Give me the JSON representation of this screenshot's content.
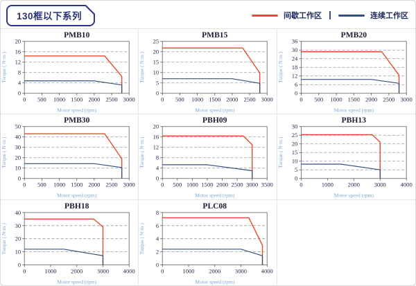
{
  "header": {
    "title": "130框以下系列",
    "legend": {
      "items": [
        {
          "label": "间歇工作区",
          "color": "#e64a2e"
        },
        {
          "label": "连续工作区",
          "color": "#2f4f87"
        }
      ],
      "separator": "|"
    }
  },
  "chart_data": [
    {
      "type": "line",
      "title": "PMB10",
      "xlabel": "Motor speed (rpm)",
      "ylabel": "Torque ( N·m )",
      "xlim": [
        0,
        3000
      ],
      "ylim": [
        0,
        20
      ],
      "xticks": [
        0,
        500,
        1000,
        1500,
        2000,
        2500,
        3000
      ],
      "yticks": [
        0,
        4,
        8,
        12,
        16,
        20
      ],
      "grid": "horizontal-dashed",
      "series": [
        {
          "name": "间歇工作区",
          "color": "#e64a2e",
          "points": [
            [
              0,
              14.4
            ],
            [
              2300,
              14.4
            ],
            [
              2790,
              6.5
            ],
            [
              2790,
              0
            ]
          ]
        },
        {
          "name": "连续工作区",
          "color": "#31517f",
          "points": [
            [
              0,
              4.8
            ],
            [
              2000,
              4.8
            ],
            [
              2790,
              3.2
            ],
            [
              2790,
              0
            ]
          ]
        }
      ]
    },
    {
      "type": "line",
      "title": "PMB15",
      "xlabel": "Motor speed (rpm)",
      "ylabel": "Torque ( N·m )",
      "xlim": [
        0,
        3000
      ],
      "ylim": [
        0,
        25
      ],
      "xticks": [
        0,
        500,
        1000,
        1500,
        2000,
        2500,
        3000
      ],
      "yticks": [
        0,
        5,
        10,
        15,
        20,
        25
      ],
      "grid": "horizontal-dashed",
      "series": [
        {
          "name": "间歇工作区",
          "color": "#e64a2e",
          "points": [
            [
              0,
              21.8
            ],
            [
              2300,
              21.8
            ],
            [
              2790,
              9.8
            ],
            [
              2790,
              0
            ]
          ]
        },
        {
          "name": "连续工作区",
          "color": "#31517f",
          "points": [
            [
              0,
              7
            ],
            [
              2000,
              7
            ],
            [
              2790,
              4.8
            ],
            [
              2790,
              0
            ]
          ]
        }
      ]
    },
    {
      "type": "line",
      "title": "PMB20",
      "xlabel": "Motor speed (rpm)",
      "ylabel": "Torque ( N·m )",
      "xlim": [
        0,
        3000
      ],
      "ylim": [
        0,
        36
      ],
      "xticks": [
        0,
        500,
        1000,
        1500,
        2000,
        2500,
        3000
      ],
      "yticks": [
        0,
        6,
        12,
        18,
        24,
        30,
        36
      ],
      "grid": "horizontal-dashed",
      "series": [
        {
          "name": "间歇工作区",
          "color": "#e64a2e",
          "points": [
            [
              0,
              28.8
            ],
            [
              2300,
              28.8
            ],
            [
              2790,
              12.5
            ],
            [
              2790,
              0
            ]
          ]
        },
        {
          "name": "连续工作区",
          "color": "#31517f",
          "points": [
            [
              0,
              9.6
            ],
            [
              2000,
              9.6
            ],
            [
              2790,
              6.9
            ],
            [
              2790,
              0
            ]
          ]
        }
      ]
    },
    {
      "type": "line",
      "title": "PMB30",
      "xlabel": "Motor speed (rpm)",
      "ylabel": "Torque ( N·m )",
      "xlim": [
        0,
        3000
      ],
      "ylim": [
        0,
        50
      ],
      "xticks": [
        0,
        500,
        1000,
        1500,
        2000,
        2500,
        3000
      ],
      "yticks": [
        0,
        10,
        20,
        30,
        40,
        50
      ],
      "grid": "horizontal-dashed",
      "series": [
        {
          "name": "间歇工作区",
          "color": "#e64a2e",
          "points": [
            [
              0,
              43
            ],
            [
              2300,
              43
            ],
            [
              2790,
              19
            ],
            [
              2790,
              0
            ]
          ]
        },
        {
          "name": "连续工作区",
          "color": "#31517f",
          "points": [
            [
              0,
              14.3
            ],
            [
              2000,
              14.3
            ],
            [
              2790,
              10.5
            ],
            [
              2790,
              0
            ]
          ]
        }
      ]
    },
    {
      "type": "line",
      "title": "PBH09",
      "xlabel": "Motor speed (rpm)",
      "ylabel": "Torque ( N·m )",
      "xlim": [
        0,
        3500
      ],
      "ylim": [
        0,
        20
      ],
      "xticks": [
        0,
        500,
        1000,
        1500,
        2000,
        2500,
        3000,
        3500
      ],
      "yticks": [
        0,
        4,
        8,
        12,
        16,
        20
      ],
      "grid": "horizontal-dashed",
      "series": [
        {
          "name": "间歇工作区",
          "color": "#e64a2e",
          "points": [
            [
              0,
              16.4
            ],
            [
              2700,
              16.4
            ],
            [
              3000,
              13
            ],
            [
              3000,
              0
            ]
          ]
        },
        {
          "name": "连续工作区",
          "color": "#31517f",
          "points": [
            [
              0,
              5.3
            ],
            [
              1500,
              5.3
            ],
            [
              3000,
              3
            ],
            [
              3000,
              0
            ]
          ]
        }
      ]
    },
    {
      "type": "line",
      "title": "PBH13",
      "xlabel": "Motor speed (rpm)",
      "ylabel": "Torque ( N·m )",
      "xlim": [
        0,
        4000
      ],
      "ylim": [
        0,
        30
      ],
      "xticks": [
        0,
        1000,
        2000,
        3000,
        4000
      ],
      "yticks": [
        0,
        5,
        10,
        15,
        20,
        25,
        30
      ],
      "grid": "horizontal-dashed",
      "series": [
        {
          "name": "间歇工作区",
          "color": "#e64a2e",
          "points": [
            [
              0,
              25.3
            ],
            [
              2700,
              25.3
            ],
            [
              3000,
              21
            ],
            [
              3000,
              0
            ]
          ]
        },
        {
          "name": "连续工作区",
          "color": "#31517f",
          "points": [
            [
              0,
              8.3
            ],
            [
              1500,
              8.3
            ],
            [
              3000,
              5
            ],
            [
              3000,
              0
            ]
          ]
        }
      ]
    },
    {
      "type": "line",
      "title": "PBH18",
      "xlabel": "Motor speed (rpm)",
      "ylabel": "Torque ( N·m )",
      "xlim": [
        0,
        4000
      ],
      "ylim": [
        0,
        40
      ],
      "xticks": [
        0,
        1000,
        2000,
        3000,
        4000
      ],
      "yticks": [
        0,
        10,
        20,
        30,
        40
      ],
      "grid": "horizontal-dashed",
      "series": [
        {
          "name": "间歇工作区",
          "color": "#e64a2e",
          "points": [
            [
              0,
              35
            ],
            [
              2650,
              35
            ],
            [
              3000,
              29
            ],
            [
              3000,
              0
            ]
          ]
        },
        {
          "name": "连续工作区",
          "color": "#31517f",
          "points": [
            [
              0,
              12
            ],
            [
              1500,
              12
            ],
            [
              3000,
              7
            ],
            [
              3000,
              0
            ]
          ]
        }
      ]
    },
    {
      "type": "line",
      "title": "PLC08",
      "xlabel": "Motor speed (rpm)",
      "ylabel": "Torque ( N·m )",
      "xlim": [
        0,
        4000
      ],
      "ylim": [
        0,
        8
      ],
      "xticks": [
        0,
        1000,
        2000,
        3000,
        4000
      ],
      "yticks": [
        0,
        2,
        4,
        6,
        8
      ],
      "grid": "horizontal-dashed",
      "series": [
        {
          "name": "间歇工作区",
          "color": "#e64a2e",
          "points": [
            [
              0,
              7.2
            ],
            [
              3300,
              7.2
            ],
            [
              3820,
              3
            ],
            [
              3820,
              0
            ]
          ]
        },
        {
          "name": "连续工作区",
          "color": "#31517f",
          "points": [
            [
              0,
              2.4
            ],
            [
              3000,
              2.4
            ],
            [
              3820,
              1.4
            ],
            [
              3820,
              0
            ]
          ]
        }
      ]
    }
  ]
}
